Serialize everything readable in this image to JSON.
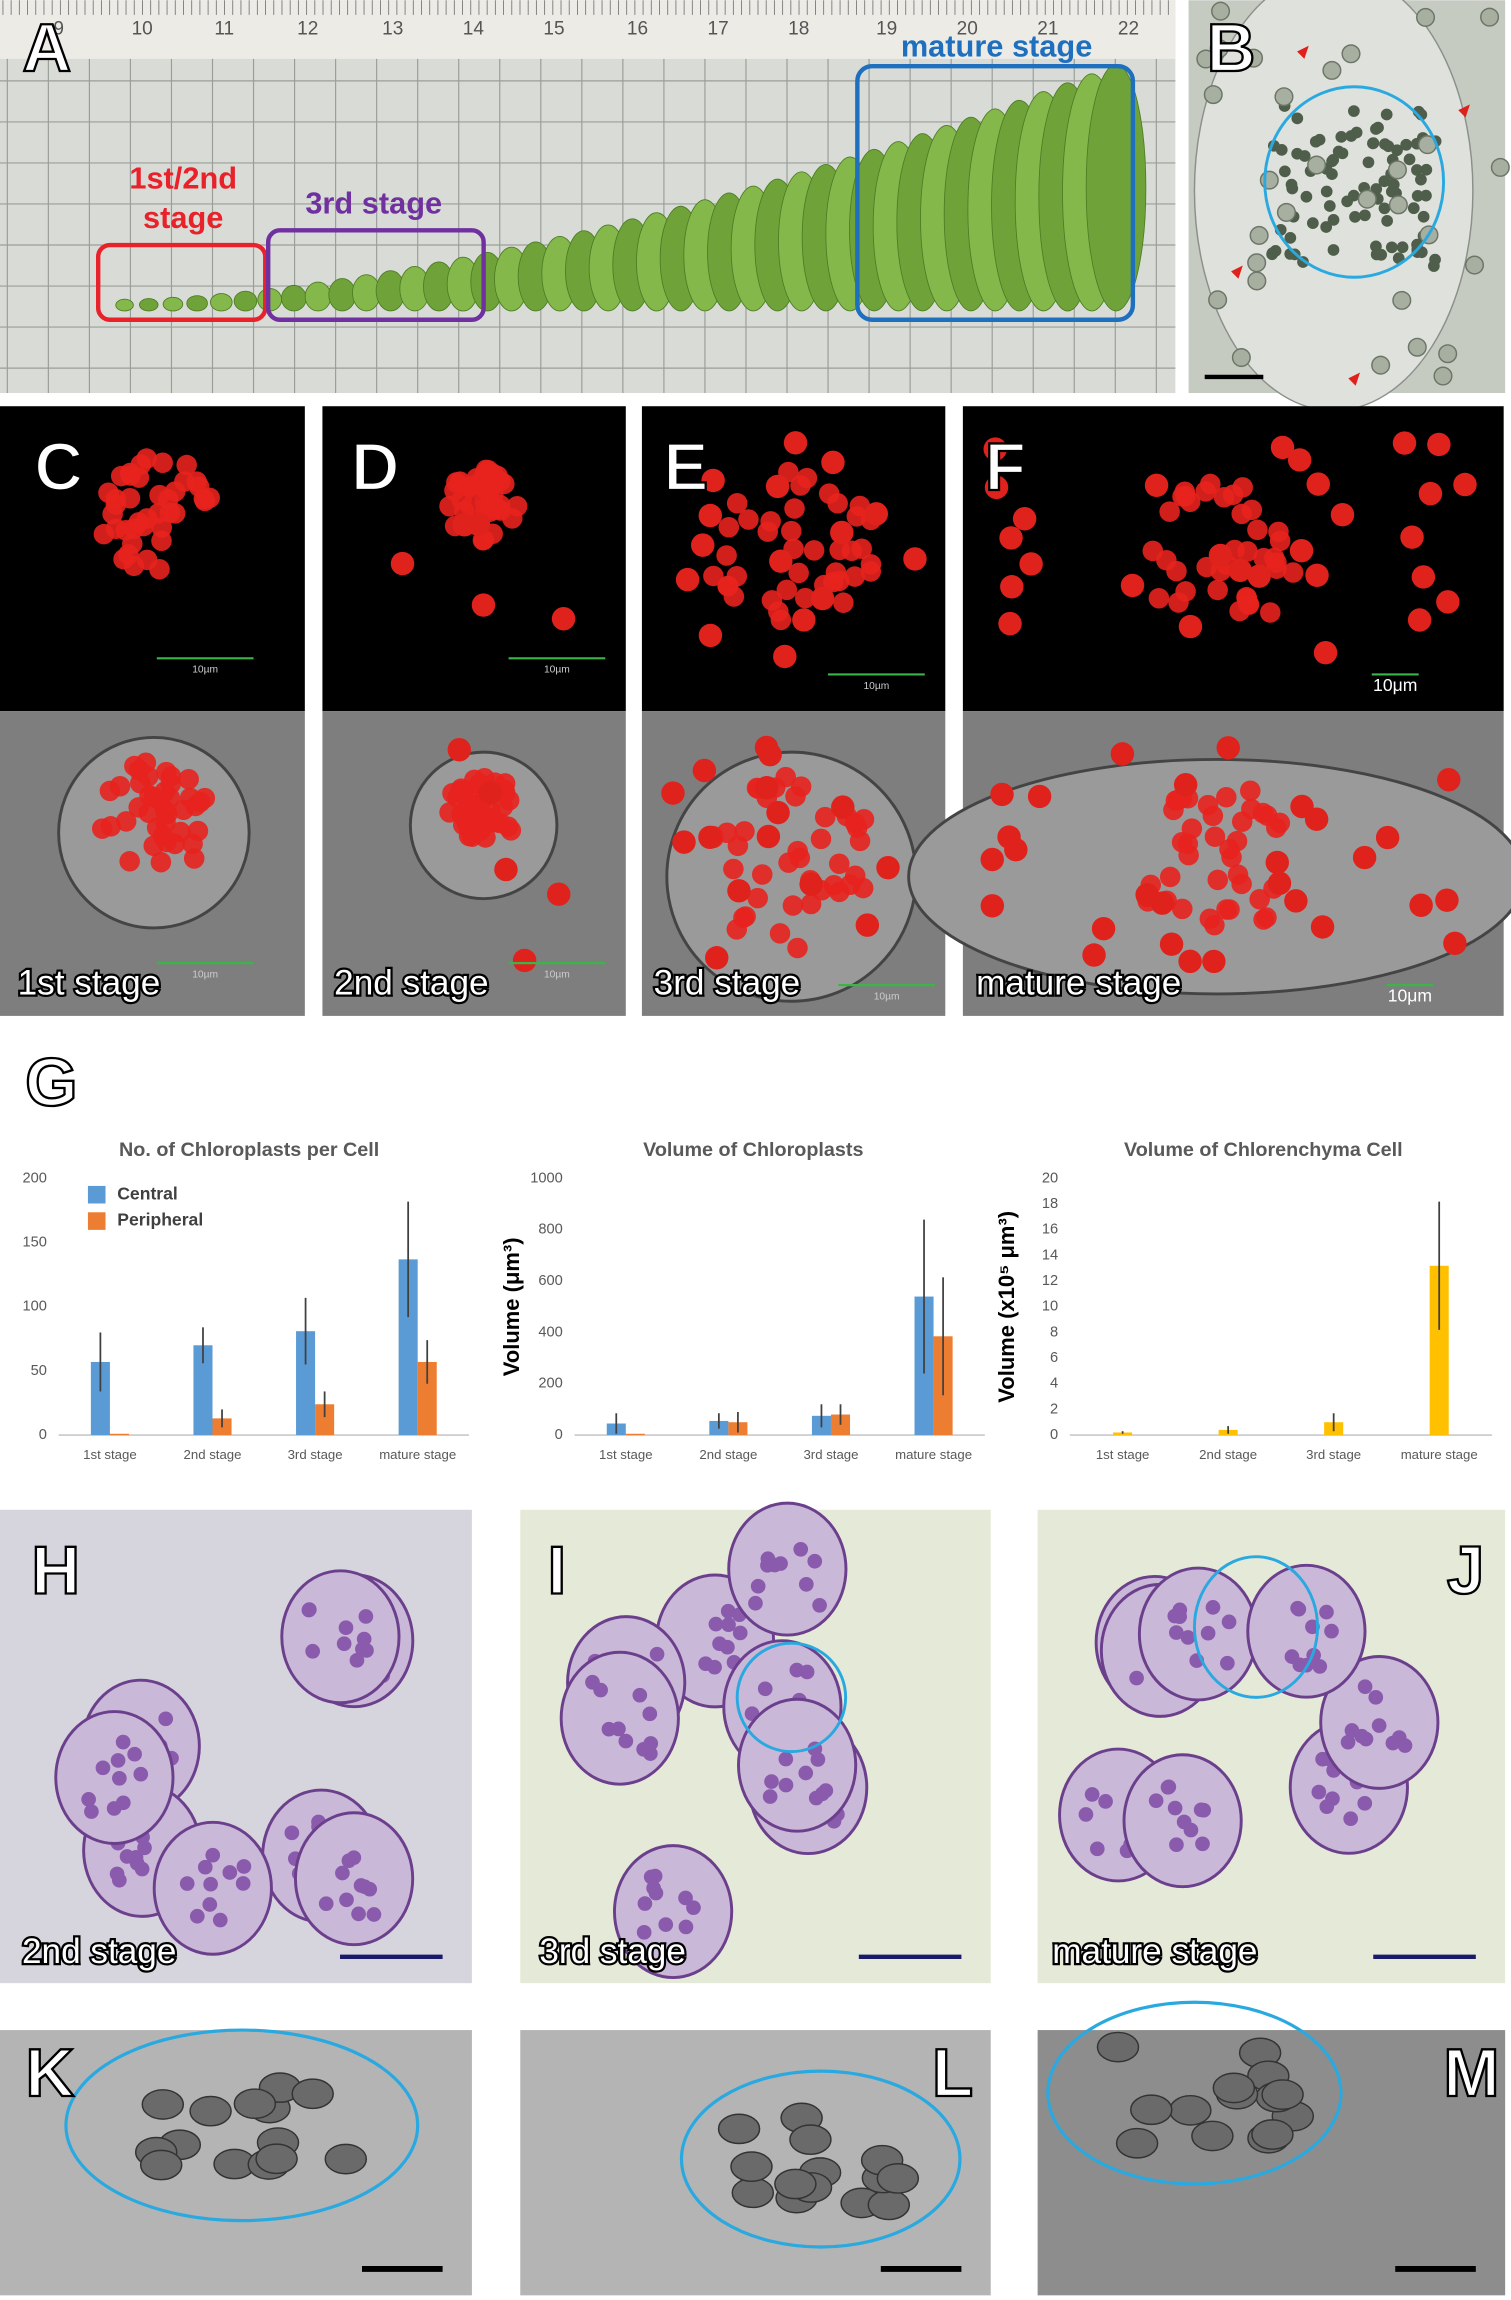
{
  "panel_labels": [
    "A",
    "B",
    "C",
    "D",
    "E",
    "F",
    "G",
    "H",
    "I",
    "J",
    "K",
    "L",
    "M"
  ],
  "panel_a": {
    "ruler_numbers": [
      9,
      10,
      11,
      12,
      13,
      14,
      15,
      16,
      17,
      18,
      19,
      20,
      21,
      22
    ],
    "annotations": {
      "mature": "mature stage",
      "early_line1": "1st/2nd",
      "early_line2": "stage",
      "third": "3rd stage"
    }
  },
  "stage_labels": {
    "C": "1st stage",
    "D": "2nd stage",
    "E": "3rd stage",
    "F": "mature stage",
    "H": "2nd stage",
    "I": "3rd stage",
    "J": "mature stage"
  },
  "scale_labels": {
    "C_top": "10µm",
    "C_bottom": "10µm",
    "D_top": "10µm",
    "D_bottom": "10µm",
    "E_top": "10µm",
    "E_bottom": "10µm",
    "F_top": "10μm",
    "F_bottom": "10μm"
  },
  "chart_data": [
    {
      "type": "bar",
      "title": "No. of Chloroplasts per Cell",
      "categories": [
        "1st stage",
        "2nd stage",
        "3rd stage",
        "mature stage"
      ],
      "series": [
        {
          "name": "Central",
          "color": "#5b9bd5",
          "values": [
            57,
            70,
            81,
            137
          ],
          "errors": [
            23,
            14,
            26,
            45
          ]
        },
        {
          "name": "Peripheral",
          "color": "#ed7d31",
          "values": [
            1,
            13,
            24,
            57
          ],
          "errors": [
            0,
            7,
            10,
            17
          ]
        }
      ],
      "ylim": [
        0,
        200
      ],
      "yticks": [
        0,
        50,
        100,
        150,
        200
      ],
      "grid": false,
      "legend": "upper left"
    },
    {
      "type": "bar",
      "title": "Volume of Chloroplasts",
      "y_label": "Volume (μm³)",
      "categories": [
        "1st stage",
        "2nd stage",
        "3rd stage",
        "mature stage"
      ],
      "series": [
        {
          "color": "#5b9bd5",
          "values": [
            45,
            55,
            75,
            540
          ],
          "errors": [
            40,
            30,
            45,
            300
          ]
        },
        {
          "color": "#ed7d31",
          "values": [
            5,
            50,
            80,
            385
          ],
          "errors": [
            0,
            40,
            40,
            230
          ]
        }
      ],
      "ylim": [
        0,
        1000
      ],
      "yticks": [
        0,
        200,
        400,
        600,
        800,
        1000
      ],
      "grid": false
    },
    {
      "type": "bar",
      "title": "Volume of Chlorenchyma Cell",
      "y_label": "Volume (x10⁵ μm³)",
      "categories": [
        "1st stage",
        "2nd stage",
        "3rd stage",
        "mature stage"
      ],
      "series": [
        {
          "color": "#ffc000",
          "values": [
            0.2,
            0.4,
            1.0,
            13.2
          ],
          "errors": [
            0.1,
            0.3,
            0.7,
            5.0
          ]
        }
      ],
      "ylim": [
        0,
        20
      ],
      "yticks": [
        0,
        2,
        4,
        6,
        8,
        10,
        12,
        14,
        16,
        18,
        20
      ],
      "grid": false
    }
  ]
}
